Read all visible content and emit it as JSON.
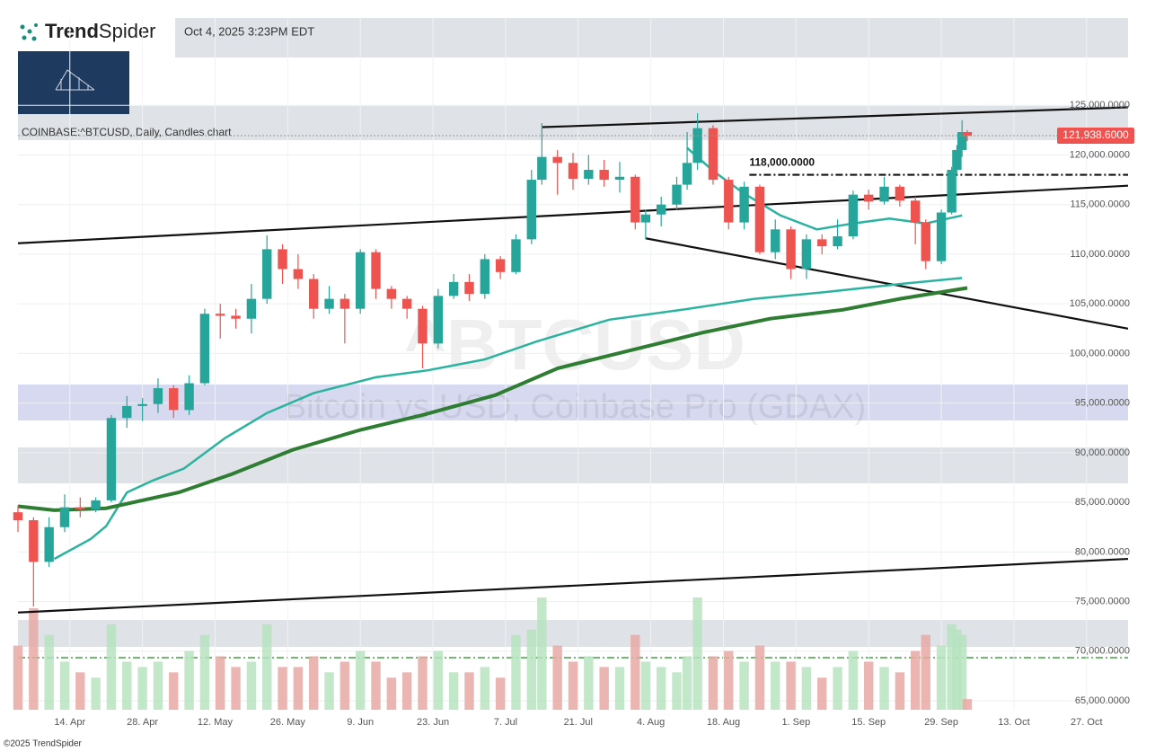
{
  "header": {
    "brand_bold": "Trend",
    "brand_light": "Spider",
    "timestamp": "Oct 4, 2025 3:23PM EDT",
    "copyright": "©2025 TrendSpider"
  },
  "chart_data": {
    "type": "candlestick",
    "title": "COINBASE:^BTCUSD, Daily, Candles chart",
    "watermark": "^BTCUSD",
    "watermark_subtitle": "Bitcoin vs USD, Coinbase Pro (GDAX)",
    "x": [
      "2025-04-04",
      "2025-04-07",
      "2025-04-10",
      "2025-04-13",
      "2025-04-16",
      "2025-04-19",
      "2025-04-22",
      "2025-04-25",
      "2025-04-28",
      "2025-05-01",
      "2025-05-04",
      "2025-05-07",
      "2025-05-10",
      "2025-05-13",
      "2025-05-16",
      "2025-05-19",
      "2025-05-22",
      "2025-05-25",
      "2025-05-28",
      "2025-05-31",
      "2025-06-03",
      "2025-06-06",
      "2025-06-09",
      "2025-06-12",
      "2025-06-15",
      "2025-06-18",
      "2025-06-21",
      "2025-06-24",
      "2025-06-27",
      "2025-06-30",
      "2025-07-03",
      "2025-07-06",
      "2025-07-09",
      "2025-07-12",
      "2025-07-14",
      "2025-07-17",
      "2025-07-20",
      "2025-07-23",
      "2025-07-26",
      "2025-07-29",
      "2025-08-01",
      "2025-08-03",
      "2025-08-06",
      "2025-08-09",
      "2025-08-11",
      "2025-08-13",
      "2025-08-16",
      "2025-08-19",
      "2025-08-22",
      "2025-08-25",
      "2025-08-28",
      "2025-08-31",
      "2025-09-03",
      "2025-09-06",
      "2025-09-09",
      "2025-09-12",
      "2025-09-15",
      "2025-09-18",
      "2025-09-21",
      "2025-09-24",
      "2025-09-26",
      "2025-09-29",
      "2025-10-01",
      "2025-10-02",
      "2025-10-03",
      "2025-10-04"
    ],
    "open": [
      84000,
      83200,
      79000,
      82500,
      84500,
      84300,
      85200,
      93500,
      94700,
      94900,
      96500,
      94300,
      97000,
      104000,
      103800,
      103500,
      105500,
      110500,
      108500,
      107500,
      104500,
      105500,
      104500,
      110200,
      106500,
      105500,
      104500,
      101000,
      105800,
      107200,
      106000,
      109500,
      108200,
      111500,
      117500,
      119800,
      119200,
      117600,
      118500,
      117500,
      117800,
      113200,
      114000,
      115000,
      117000,
      119200,
      122700,
      117500,
      113200,
      116800,
      110200,
      112500,
      108500,
      111500,
      110800,
      111800,
      116000,
      115300,
      116800,
      115400,
      113200,
      109300,
      114200,
      118500,
      120500,
      122300
    ],
    "high": [
      84700,
      83500,
      83500,
      85800,
      85500,
      85500,
      93800,
      95700,
      95500,
      97500,
      96800,
      97800,
      104500,
      105000,
      104500,
      107000,
      111900,
      111000,
      110000,
      108000,
      106800,
      106000,
      110500,
      110500,
      106800,
      105800,
      104800,
      106500,
      108000,
      108000,
      110000,
      109800,
      112000,
      118500,
      123200,
      120500,
      120200,
      120000,
      119500,
      119300,
      118000,
      114500,
      115800,
      117800,
      122300,
      124200,
      123000,
      117800,
      117300,
      117000,
      113500,
      112800,
      112000,
      112000,
      113500,
      116400,
      116500,
      117800,
      117000,
      115800,
      113500,
      114500,
      118800,
      121000,
      123500,
      122500
    ],
    "low": [
      82000,
      74500,
      78500,
      82000,
      83500,
      84000,
      85000,
      92500,
      93200,
      94000,
      93500,
      93800,
      96800,
      101500,
      102500,
      102000,
      105000,
      107000,
      106500,
      103500,
      104000,
      101000,
      104000,
      105500,
      104500,
      103500,
      98500,
      100500,
      105500,
      105300,
      105500,
      107500,
      108000,
      111000,
      117000,
      116000,
      116500,
      117000,
      116800,
      116200,
      112500,
      111500,
      112800,
      114500,
      116500,
      118500,
      117000,
      112500,
      112500,
      110000,
      109500,
      107500,
      107500,
      110000,
      110500,
      111500,
      114500,
      115000,
      114800,
      111000,
      108500,
      109000,
      114000,
      118000,
      119800,
      121400
    ],
    "close": [
      83200,
      79000,
      82500,
      84500,
      84300,
      85200,
      93500,
      94700,
      94900,
      96500,
      94300,
      97000,
      104000,
      103800,
      103500,
      105500,
      110500,
      108500,
      107500,
      104500,
      105500,
      104500,
      110200,
      106500,
      105500,
      104500,
      101000,
      105800,
      107200,
      106000,
      109500,
      108200,
      111500,
      117500,
      119800,
      119200,
      117600,
      118500,
      117500,
      117800,
      113200,
      114000,
      115000,
      117000,
      119200,
      122700,
      117500,
      113200,
      116800,
      110200,
      112500,
      108500,
      111500,
      110800,
      111800,
      116000,
      115300,
      116800,
      115400,
      113200,
      109300,
      114200,
      118500,
      120500,
      122300,
      121938.6
    ],
    "volume": [
      60,
      95,
      70,
      45,
      35,
      30,
      80,
      45,
      40,
      45,
      35,
      55,
      70,
      50,
      40,
      45,
      80,
      40,
      40,
      50,
      35,
      45,
      55,
      45,
      30,
      35,
      50,
      55,
      35,
      35,
      40,
      30,
      70,
      75,
      105,
      60,
      45,
      50,
      40,
      40,
      70,
      45,
      40,
      35,
      50,
      105,
      50,
      55,
      45,
      60,
      45,
      45,
      40,
      30,
      40,
      55,
      45,
      40,
      35,
      55,
      70,
      60,
      80,
      75,
      70,
      10
    ],
    "up_color": "#26a69a",
    "down_color": "#ef5350",
    "last_price": 121938.6,
    "last_price_label": "121,938.6000",
    "series": [
      {
        "color": "#2bb3a0",
        "x": [
          "2025-08-11",
          "2025-08-16",
          "2025-08-22",
          "2025-08-29",
          "2025-09-05",
          "2025-09-12",
          "2025-09-19",
          "2025-09-26",
          "2025-10-03"
        ],
        "values": [
          120700,
          118400,
          116100,
          113900,
          112500,
          113100,
          113600,
          113100,
          113900
        ]
      },
      {
        "color": "#2bb3a0",
        "x": [
          "2025-04-11",
          "2025-04-18",
          "2025-04-21",
          "2025-04-25",
          "2025-04-30",
          "2025-05-06",
          "2025-05-14",
          "2025-05-22",
          "2025-05-31",
          "2025-06-12",
          "2025-06-22",
          "2025-07-03",
          "2025-07-13",
          "2025-07-27",
          "2025-08-10",
          "2025-08-24",
          "2025-09-07",
          "2025-09-21",
          "2025-10-03"
        ],
        "values": [
          79300,
          81300,
          82600,
          86000,
          87200,
          88400,
          91500,
          94000,
          96000,
          97600,
          98300,
          99400,
          101200,
          103400,
          104400,
          105500,
          106200,
          107000,
          107600
        ]
      },
      {
        "color": "#2e7d32",
        "x": [
          "2025-04-04",
          "2025-04-11",
          "2025-04-21",
          "2025-05-05",
          "2025-05-15",
          "2025-05-27",
          "2025-06-09",
          "2025-06-21",
          "2025-07-05",
          "2025-07-17",
          "2025-07-31",
          "2025-08-14",
          "2025-08-27",
          "2025-09-10",
          "2025-09-21",
          "2025-10-04"
        ],
        "values": [
          84600,
          84200,
          84400,
          86000,
          87800,
          90300,
          92300,
          93800,
          95800,
          98500,
          100300,
          102100,
          103500,
          104400,
          105500,
          106600
        ]
      }
    ],
    "trendlines": [
      {
        "x": [
          "2025-04-04",
          "2025-11-04"
        ],
        "values": [
          111100,
          116900
        ]
      },
      {
        "x": [
          "2025-08-03",
          "2025-11-04"
        ],
        "values": [
          111600,
          102500
        ]
      },
      {
        "x": [
          "2025-07-14",
          "2025-11-04"
        ],
        "values": [
          122800,
          124800
        ]
      },
      {
        "x": [
          "2025-04-04",
          "2025-11-04"
        ],
        "values": [
          73900,
          79300
        ]
      }
    ],
    "hline": {
      "value": 118000,
      "label": "118,000.0000",
      "x": "2025-08-23"
    },
    "xlim": [
      "2025-04-04",
      "2025-11-04"
    ],
    "xticks": [
      {
        "value": "2025-04-14",
        "label": "14. Apr"
      },
      {
        "value": "2025-04-28",
        "label": "28. Apr"
      },
      {
        "value": "2025-05-12",
        "label": "12. May"
      },
      {
        "value": "2025-05-26",
        "label": "26. May"
      },
      {
        "value": "2025-06-09",
        "label": "9. Jun"
      },
      {
        "value": "2025-06-23",
        "label": "23. Jun"
      },
      {
        "value": "2025-07-07",
        "label": "7. Jul"
      },
      {
        "value": "2025-07-21",
        "label": "21. Jul"
      },
      {
        "value": "2025-08-04",
        "label": "4. Aug"
      },
      {
        "value": "2025-08-18",
        "label": "18. Aug"
      },
      {
        "value": "2025-09-01",
        "label": "1. Sep"
      },
      {
        "value": "2025-09-15",
        "label": "15. Sep"
      },
      {
        "value": "2025-09-29",
        "label": "29. Sep"
      },
      {
        "value": "2025-10-13",
        "label": "13. Oct"
      },
      {
        "value": "2025-10-27",
        "label": "27. Oct"
      }
    ],
    "ylim": [
      64100,
      133800
    ],
    "yticks": [
      {
        "value": 65000,
        "label": "65,000.0000"
      },
      {
        "value": 70000,
        "label": "70,000.0000"
      },
      {
        "value": 75000,
        "label": "75,000.0000"
      },
      {
        "value": 80000,
        "label": "80,000.0000"
      },
      {
        "value": 85000,
        "label": "85,000.0000"
      },
      {
        "value": 90000,
        "label": "90,000.0000"
      },
      {
        "value": 95000,
        "label": "95,000.0000"
      },
      {
        "value": 100000,
        "label": "100,000.0000"
      },
      {
        "value": 105000,
        "label": "105,000.0000"
      },
      {
        "value": 110000,
        "label": "110,000.0000"
      },
      {
        "value": 115000,
        "label": "115,000.0000"
      },
      {
        "value": 120000,
        "label": "120,000.0000"
      },
      {
        "value": 125000,
        "label": "125,000.0000"
      }
    ]
  }
}
